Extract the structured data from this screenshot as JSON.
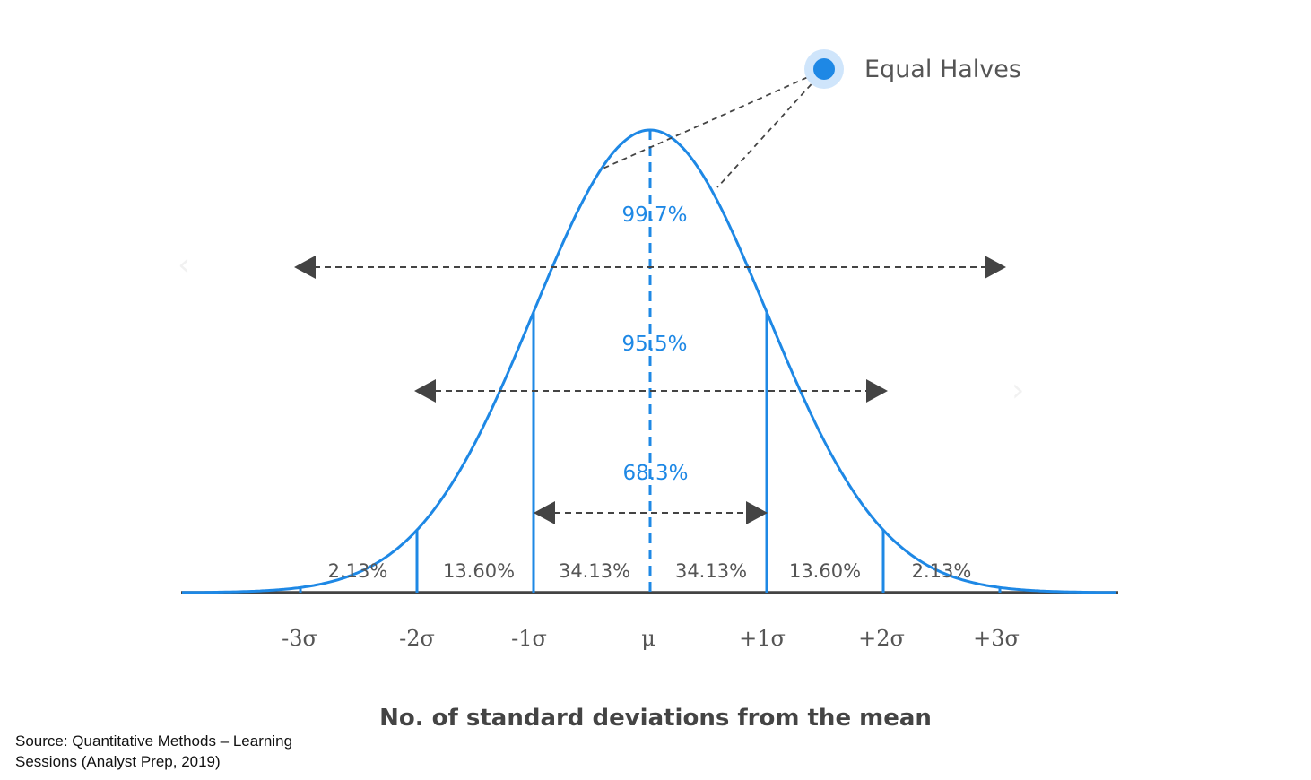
{
  "legend": {
    "label": "Equal Halves"
  },
  "confidence_labels": {
    "p997": "99.7%",
    "p955": "95.5%",
    "p683": "68.3%"
  },
  "region_labels": [
    "2.13%",
    "13.60%",
    "34.13%",
    "34.13%",
    "13.60%",
    "2.13%"
  ],
  "tick_labels": [
    "-3σ",
    "-2σ",
    "-1σ",
    "μ",
    "+1σ",
    "+2σ",
    "+3σ"
  ],
  "axis_title": "No. of standard deviations from the mean",
  "source": "Source: Quantitative Methods – Learning Sessions (Analyst Prep, 2019)",
  "nav": {
    "prev": "‹",
    "next": "›"
  },
  "colors": {
    "curve": "#1e88e5",
    "axis": "#444444",
    "arrow": "#444444",
    "label_blue": "#1e88e5",
    "text_gray": "#555555"
  }
}
